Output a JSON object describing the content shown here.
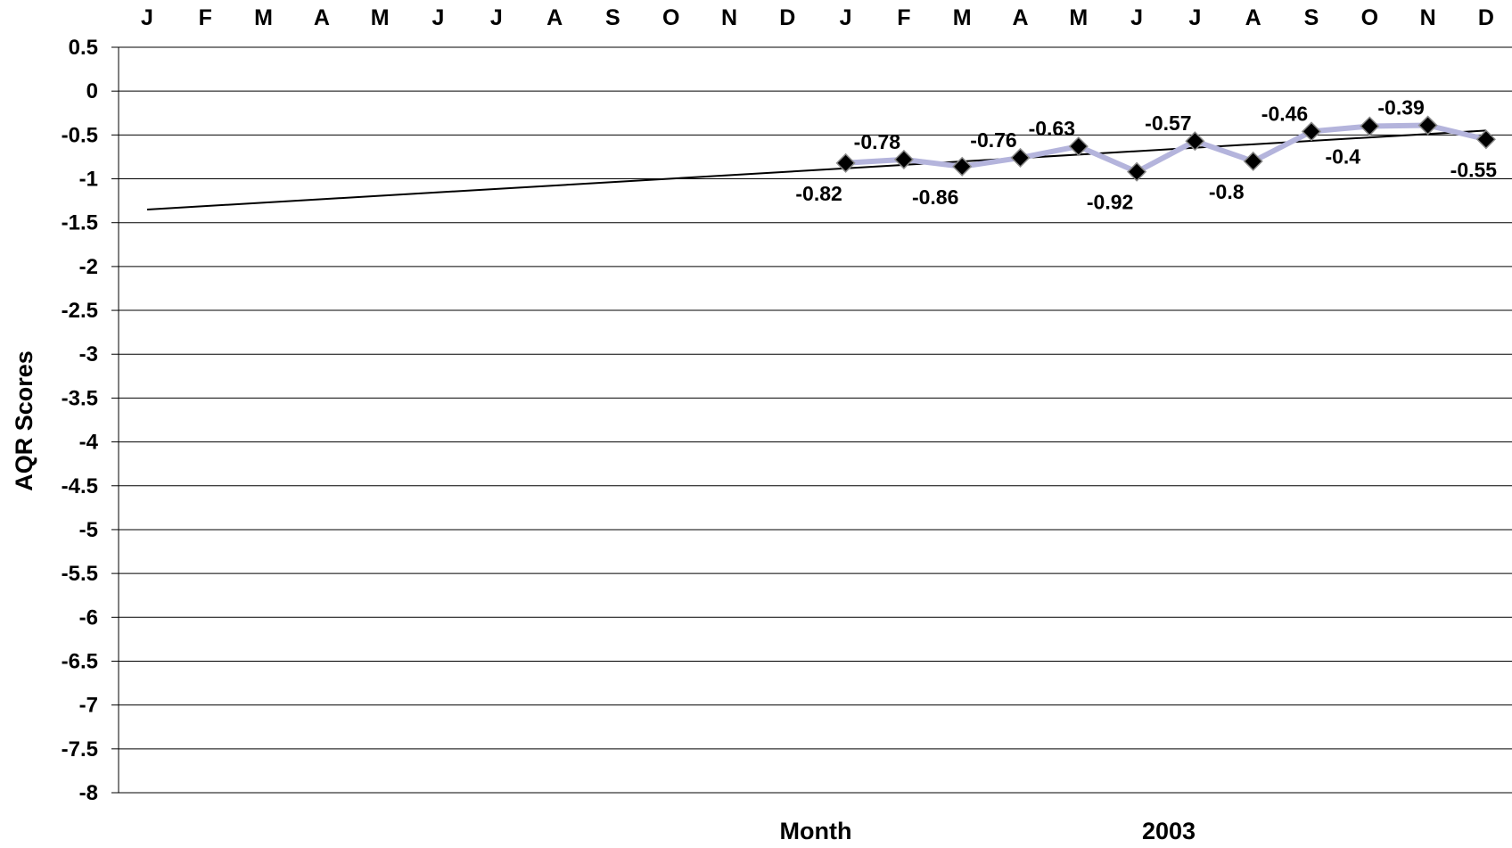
{
  "chart_data": {
    "type": "line",
    "title": "",
    "xlabel": "Month",
    "year_label": "2003",
    "ylabel": "AQR Scores",
    "ylim": [
      -8,
      0.5
    ],
    "y_ticks": [
      "0.5",
      "0",
      "-0.5",
      "-1",
      "-1.5",
      "-2",
      "-2.5",
      "-3",
      "-3.5",
      "-4",
      "-4.5",
      "-5",
      "-5.5",
      "-6",
      "-6.5",
      "-7",
      "-7.5",
      "-8"
    ],
    "x_ticks": [
      "J",
      "F",
      "M",
      "A",
      "M",
      "J",
      "J",
      "A",
      "S",
      "O",
      "N",
      "D",
      "J",
      "F",
      "M",
      "A",
      "M",
      "J",
      "J",
      "A",
      "S",
      "O",
      "N",
      "D"
    ],
    "x_axis_position": "top",
    "grid": "horizontal",
    "legend": "none",
    "series": [
      {
        "x_index": [
          12,
          13,
          14,
          15,
          16,
          17,
          18,
          19,
          20,
          21,
          22,
          23
        ],
        "values": [
          -0.82,
          -0.78,
          -0.86,
          -0.76,
          -0.63,
          -0.92,
          -0.57,
          -0.8,
          -0.46,
          -0.4,
          -0.39,
          -0.55
        ],
        "labels": [
          "-0.82",
          "-0.78",
          "-0.86",
          "-0.76",
          "-0.63",
          "-0.92",
          "-0.57",
          "-0.8",
          "-0.46",
          "-0.4",
          "-0.39",
          "-0.55"
        ],
        "label_side": [
          "below",
          "above",
          "below",
          "above",
          "above",
          "below",
          "above",
          "below",
          "above",
          "below",
          "above",
          "below"
        ],
        "line_color": "#b4b4dc",
        "marker_color": "#000000"
      }
    ],
    "trendline": {
      "type": "linear",
      "start": {
        "x_index": 0,
        "y": -1.35
      },
      "end": {
        "x_index": 23,
        "y": -0.45
      },
      "color": "#000000"
    }
  }
}
